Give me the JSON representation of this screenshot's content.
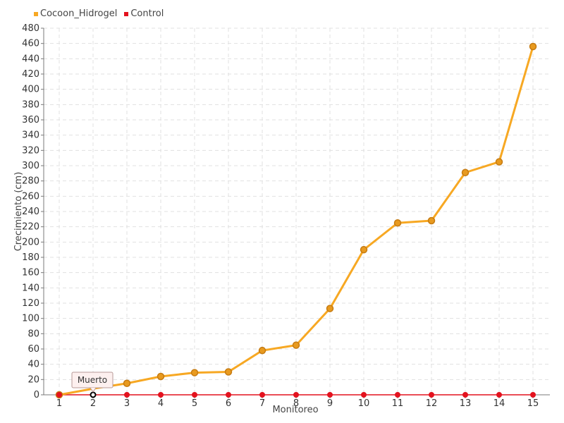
{
  "colors": {
    "cocoon": "#f7a823",
    "cocoon_marker": "#e89a1f",
    "cocoon_marker_stroke": "#c67b12",
    "control": "#e3121e",
    "grid": "#e1e1e1",
    "axis": "#7a7a7a"
  },
  "legend": {
    "cocoon_label": "Cocoon_Hidrogel",
    "control_label": "Control"
  },
  "chart_data": {
    "type": "line",
    "title": "",
    "xlabel": "Monitoreo",
    "ylabel": "Crecimiento (cm)",
    "categories": [
      "1",
      "2",
      "3",
      "4",
      "5",
      "6",
      "7",
      "8",
      "9",
      "10",
      "11",
      "12",
      "13",
      "14",
      "15"
    ],
    "ylim": [
      0,
      480
    ],
    "ytick_step": 20,
    "grid": true,
    "legend_position": "top-left",
    "series": [
      {
        "name": "Cocoon_Hidrogel",
        "values": [
          0,
          8,
          15,
          24,
          29,
          30,
          58,
          65,
          113,
          190,
          225,
          228,
          291,
          305,
          456
        ]
      },
      {
        "name": "Control",
        "values": [
          0,
          0,
          0,
          0,
          0,
          0,
          0,
          0,
          0,
          0,
          0,
          0,
          0,
          0,
          0
        ]
      }
    ],
    "annotations": [
      {
        "text": "Muerto",
        "category": "2",
        "series": "Control"
      }
    ]
  }
}
